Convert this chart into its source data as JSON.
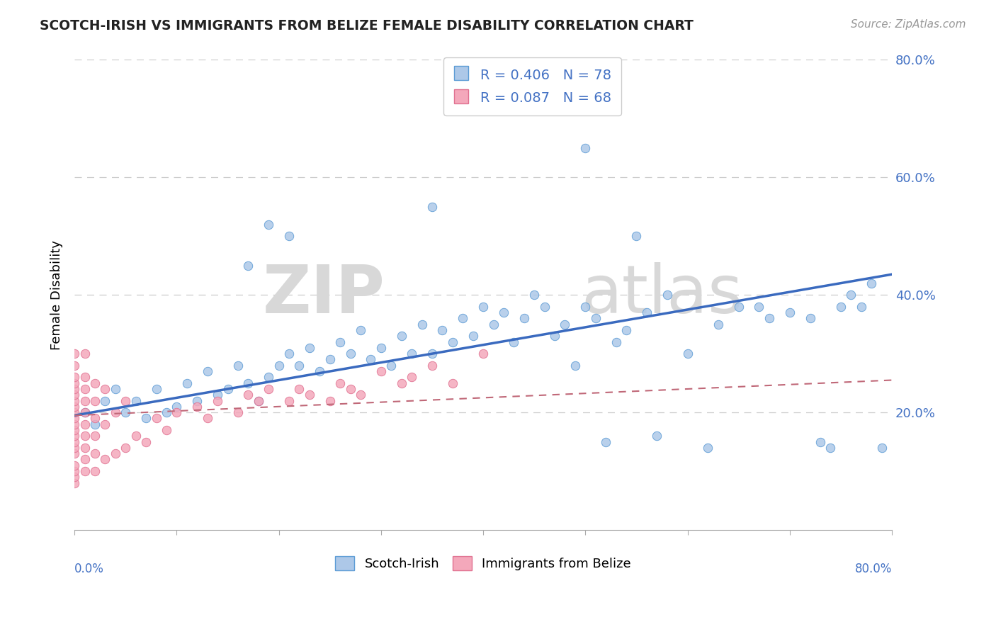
{
  "title": "SCOTCH-IRISH VS IMMIGRANTS FROM BELIZE FEMALE DISABILITY CORRELATION CHART",
  "source": "Source: ZipAtlas.com",
  "ylabel": "Female Disability",
  "xlim": [
    0.0,
    0.8
  ],
  "ylim": [
    0.0,
    0.8
  ],
  "color_scotch_fill": "#adc8e8",
  "color_scotch_edge": "#5b9bd5",
  "color_belize_fill": "#f4a8bb",
  "color_belize_edge": "#e07090",
  "color_line_scotch": "#3a6abf",
  "color_line_belize": "#c06878",
  "watermark_zip": "ZIP",
  "watermark_atlas": "atlas",
  "scotch_x": [
    0.01,
    0.02,
    0.03,
    0.04,
    0.05,
    0.06,
    0.07,
    0.08,
    0.09,
    0.1,
    0.11,
    0.12,
    0.13,
    0.14,
    0.15,
    0.16,
    0.17,
    0.18,
    0.19,
    0.2,
    0.21,
    0.22,
    0.23,
    0.24,
    0.25,
    0.26,
    0.27,
    0.28,
    0.29,
    0.3,
    0.31,
    0.32,
    0.33,
    0.34,
    0.35,
    0.36,
    0.37,
    0.38,
    0.39,
    0.4,
    0.41,
    0.42,
    0.43,
    0.44,
    0.45,
    0.46,
    0.47,
    0.48,
    0.49,
    0.5,
    0.51,
    0.52,
    0.53,
    0.54,
    0.55,
    0.56,
    0.57,
    0.58,
    0.6,
    0.62,
    0.63,
    0.65,
    0.67,
    0.68,
    0.7,
    0.72,
    0.73,
    0.74,
    0.75,
    0.76,
    0.77,
    0.78,
    0.79,
    0.17,
    0.19,
    0.21,
    0.35,
    0.5
  ],
  "scotch_y": [
    0.2,
    0.18,
    0.22,
    0.24,
    0.2,
    0.22,
    0.19,
    0.24,
    0.2,
    0.21,
    0.25,
    0.22,
    0.27,
    0.23,
    0.24,
    0.28,
    0.25,
    0.22,
    0.26,
    0.28,
    0.3,
    0.28,
    0.31,
    0.27,
    0.29,
    0.32,
    0.3,
    0.34,
    0.29,
    0.31,
    0.28,
    0.33,
    0.3,
    0.35,
    0.3,
    0.34,
    0.32,
    0.36,
    0.33,
    0.38,
    0.35,
    0.37,
    0.32,
    0.36,
    0.4,
    0.38,
    0.33,
    0.35,
    0.28,
    0.38,
    0.36,
    0.15,
    0.32,
    0.34,
    0.5,
    0.37,
    0.16,
    0.4,
    0.3,
    0.14,
    0.35,
    0.38,
    0.38,
    0.36,
    0.37,
    0.36,
    0.15,
    0.14,
    0.38,
    0.4,
    0.38,
    0.42,
    0.14,
    0.45,
    0.52,
    0.5,
    0.55,
    0.65
  ],
  "belize_x": [
    0.0,
    0.0,
    0.0,
    0.0,
    0.0,
    0.0,
    0.0,
    0.0,
    0.0,
    0.0,
    0.0,
    0.0,
    0.0,
    0.0,
    0.0,
    0.0,
    0.0,
    0.0,
    0.0,
    0.0,
    0.01,
    0.01,
    0.01,
    0.01,
    0.01,
    0.01,
    0.01,
    0.01,
    0.01,
    0.01,
    0.02,
    0.02,
    0.02,
    0.02,
    0.02,
    0.02,
    0.03,
    0.03,
    0.03,
    0.04,
    0.04,
    0.05,
    0.05,
    0.06,
    0.07,
    0.08,
    0.09,
    0.1,
    0.12,
    0.13,
    0.14,
    0.16,
    0.17,
    0.18,
    0.19,
    0.21,
    0.22,
    0.23,
    0.25,
    0.26,
    0.27,
    0.28,
    0.3,
    0.32,
    0.33,
    0.35,
    0.37,
    0.4
  ],
  "belize_y": [
    0.08,
    0.09,
    0.1,
    0.11,
    0.13,
    0.14,
    0.15,
    0.16,
    0.17,
    0.18,
    0.19,
    0.2,
    0.21,
    0.22,
    0.23,
    0.24,
    0.25,
    0.26,
    0.28,
    0.3,
    0.1,
    0.12,
    0.14,
    0.16,
    0.18,
    0.2,
    0.22,
    0.24,
    0.26,
    0.3,
    0.1,
    0.13,
    0.16,
    0.19,
    0.22,
    0.25,
    0.12,
    0.18,
    0.24,
    0.13,
    0.2,
    0.14,
    0.22,
    0.16,
    0.15,
    0.19,
    0.17,
    0.2,
    0.21,
    0.19,
    0.22,
    0.2,
    0.23,
    0.22,
    0.24,
    0.22,
    0.24,
    0.23,
    0.22,
    0.25,
    0.24,
    0.23,
    0.27,
    0.25,
    0.26,
    0.28,
    0.25,
    0.3
  ],
  "line_scotch_x0": 0.0,
  "line_scotch_y0": 0.195,
  "line_scotch_x1": 0.8,
  "line_scotch_y1": 0.435,
  "line_belize_x0": 0.0,
  "line_belize_y0": 0.195,
  "line_belize_x1": 0.8,
  "line_belize_y1": 0.255
}
